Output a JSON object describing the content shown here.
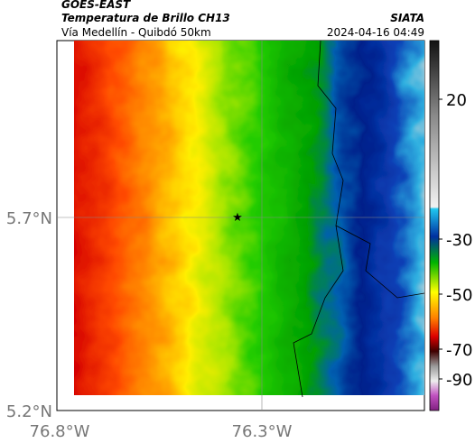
{
  "header": {
    "satellite": "GOES-EAST",
    "product": "Temperatura de Brillo CH13",
    "source": "SIATA",
    "region": "Vía Medellín - Quibdó 50km",
    "datetime": "2024-04-16 04:49"
  },
  "map": {
    "lat_ticks": [
      "5.7°N",
      "5.2°N"
    ],
    "lon_ticks": [
      "76.8°W",
      "76.3°W"
    ]
  },
  "colorbar": {
    "ticks": [
      20,
      -30,
      -50,
      -70,
      -90
    ]
  }
}
